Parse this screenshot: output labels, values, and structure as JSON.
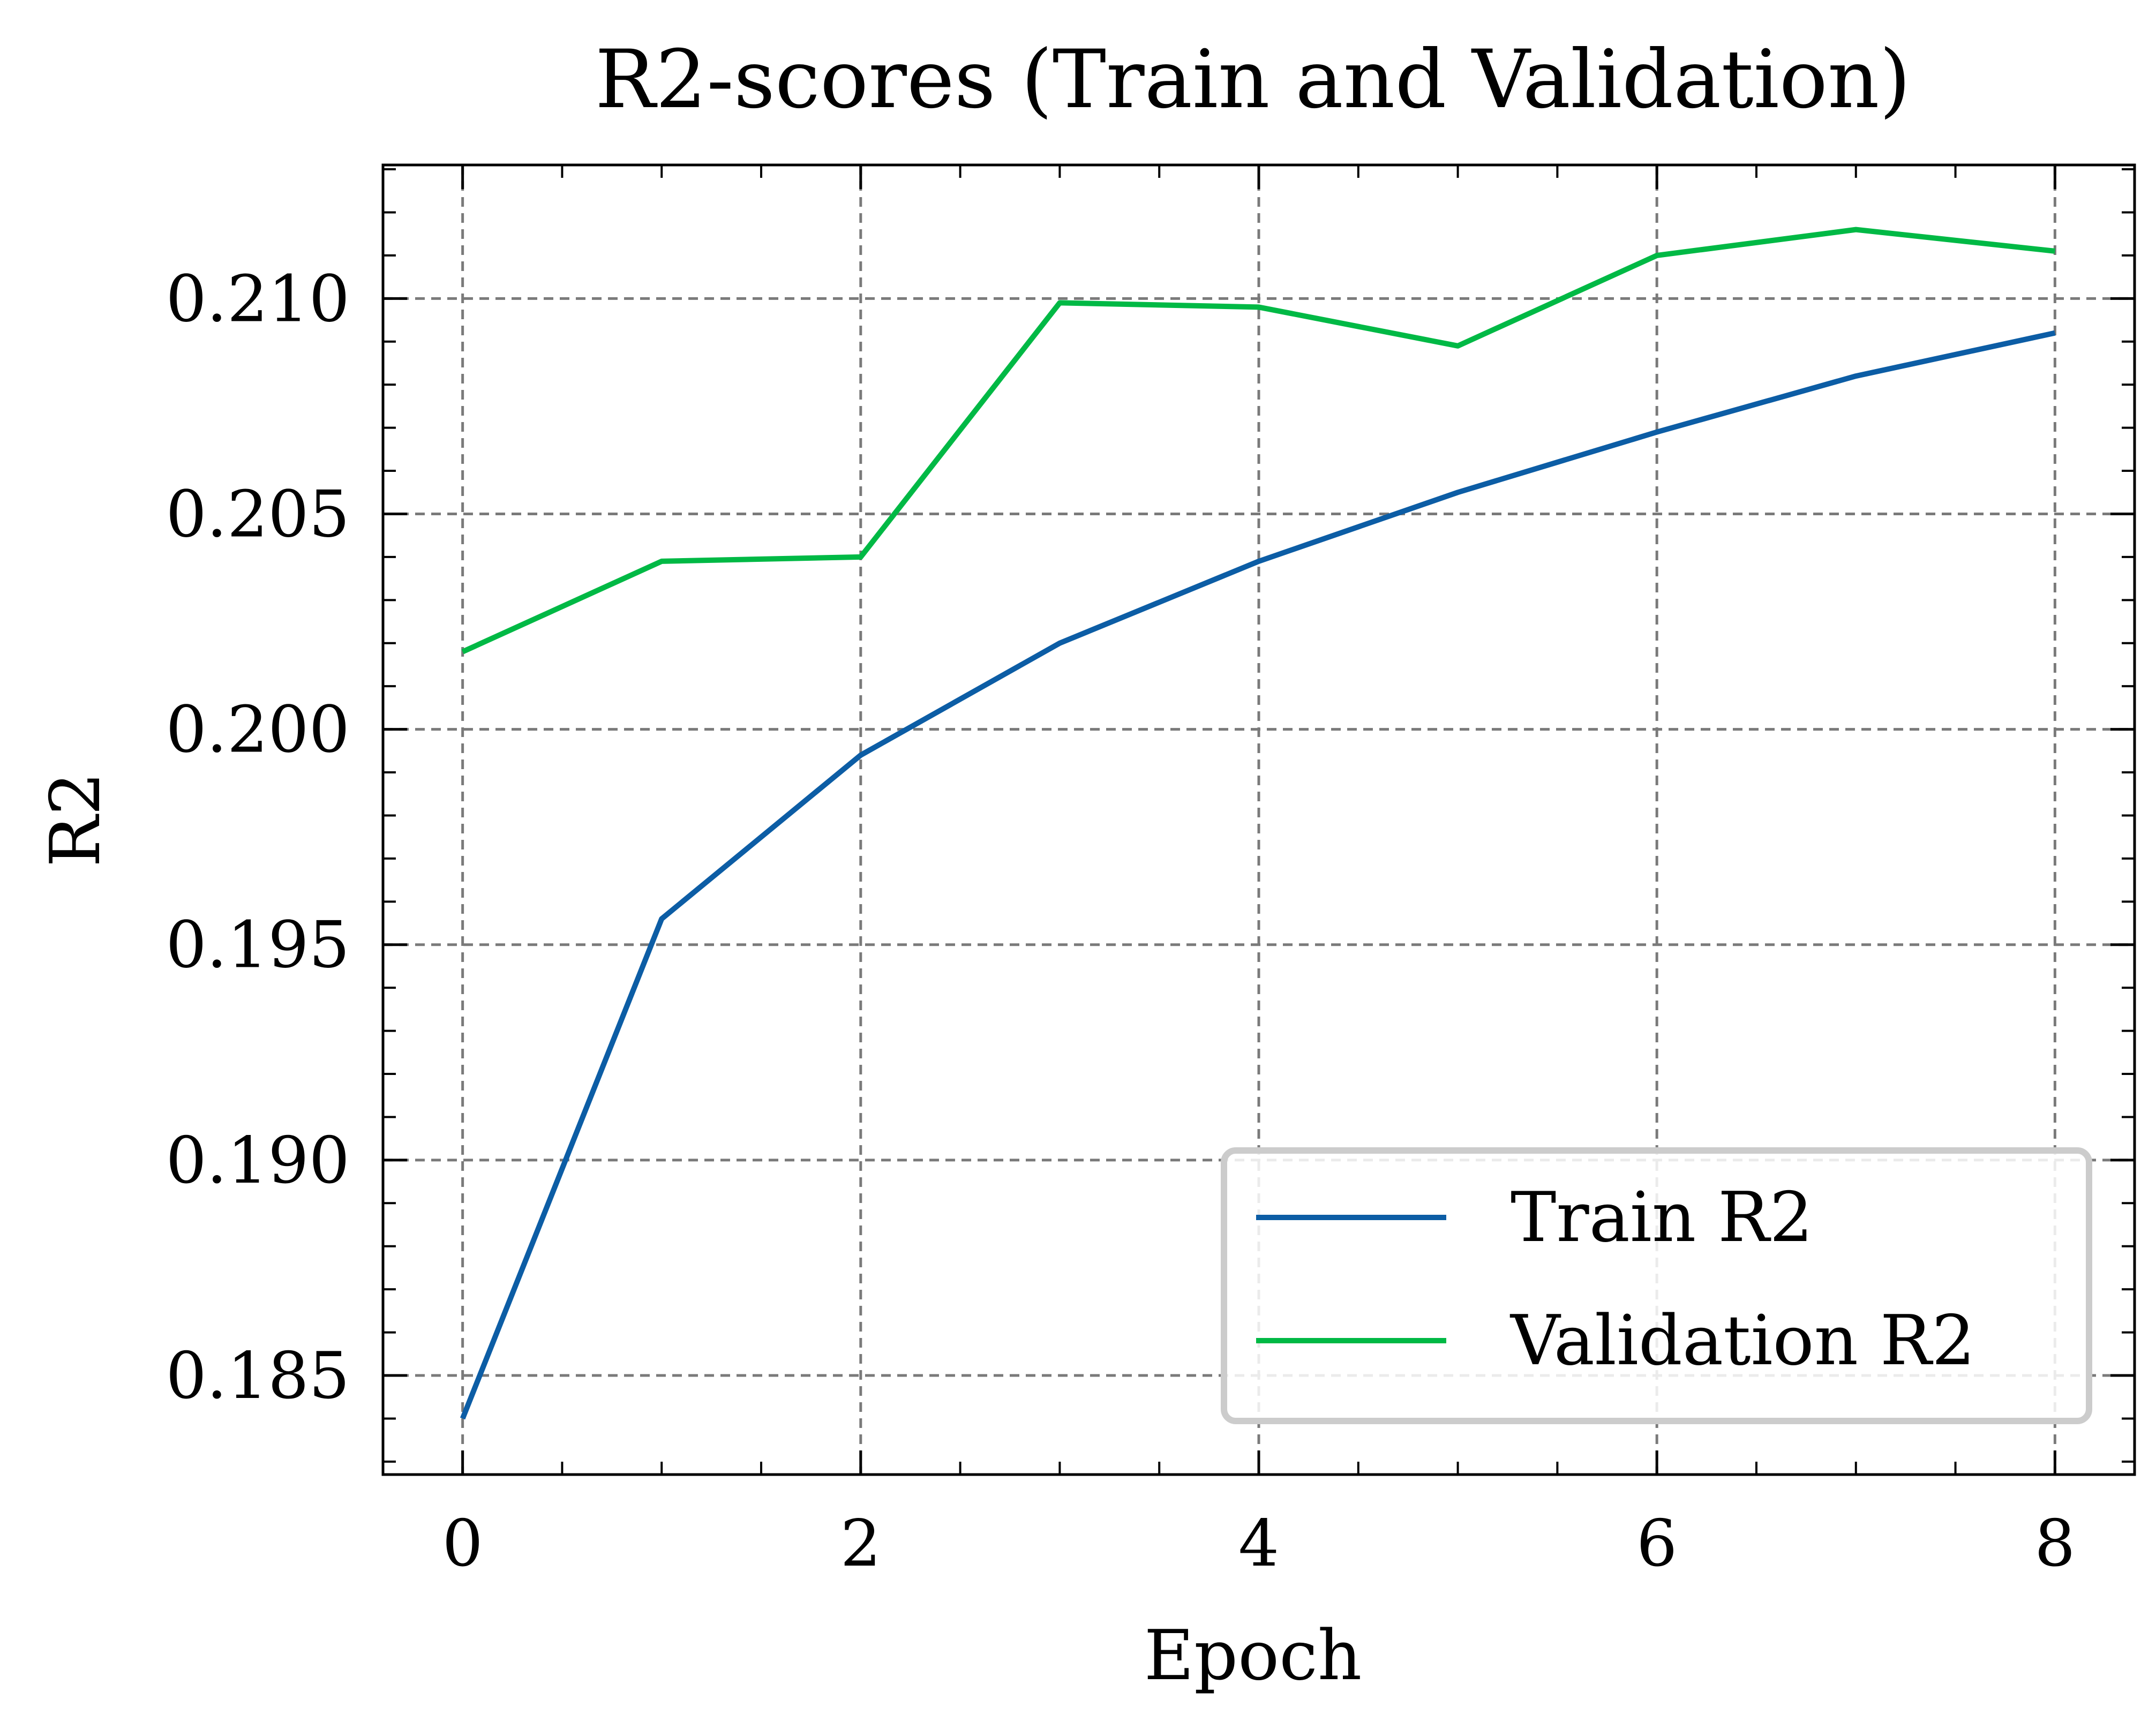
{
  "chart_data": {
    "type": "line",
    "title": "R2-scores (Train and Validation)",
    "xlabel": "Epoch",
    "ylabel": "R2",
    "x": [
      0,
      1,
      2,
      3,
      4,
      5,
      6,
      7,
      8
    ],
    "xlim": [
      -0.4,
      8.4
    ],
    "ylim": [
      0.1827,
      0.2131
    ],
    "xticks": [
      0,
      2,
      4,
      6,
      8
    ],
    "yticks": [
      0.185,
      0.19,
      0.195,
      0.2,
      0.205,
      0.21
    ],
    "xtick_labels": [
      "0",
      "2",
      "4",
      "6",
      "8"
    ],
    "ytick_labels": [
      "0.185",
      "0.190",
      "0.195",
      "0.200",
      "0.205",
      "0.210"
    ],
    "grid": true,
    "legend_position": "lower-right",
    "series": [
      {
        "name": "Train R2",
        "color": "#0c5da5",
        "values": [
          0.184,
          0.1956,
          0.1994,
          0.202,
          0.2039,
          0.2055,
          0.2069,
          0.2082,
          0.2092
        ]
      },
      {
        "name": "Validation R2",
        "color": "#00b945",
        "values": [
          0.2018,
          0.2039,
          0.204,
          0.2099,
          0.2098,
          0.2089,
          0.211,
          0.2116,
          0.2111
        ]
      }
    ]
  }
}
